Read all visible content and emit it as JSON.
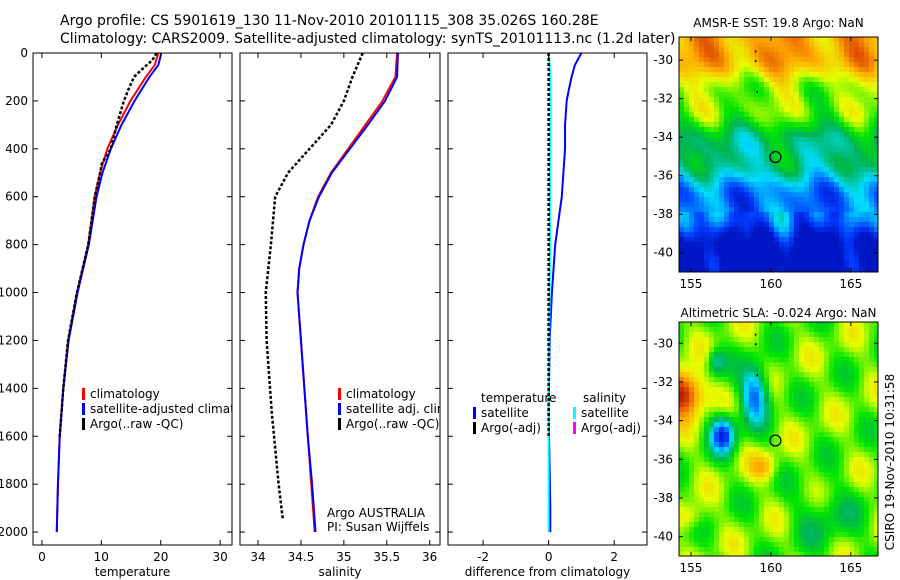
{
  "title_lines": [
    "Argo profile: CS 5901619_130 11-Nov-2010 20101115_308 35.026S 160.28E",
    "Climatology: CARS2009. Satellite-adjusted climatology: synTS_20101113.nc (1.2d later)"
  ],
  "footer_stamp": "CSIRO 19-Nov-2010 10:31:58",
  "colors": {
    "climatology": "#ff0000",
    "satellite": "#0000ff",
    "argo": "#000000",
    "salinity_satellite": "#00ffff",
    "salinity_argo": "#ff00ff"
  },
  "chart_data": [
    {
      "type": "line",
      "id": "temperature",
      "xlabel": "temperature",
      "ylabel": "depth",
      "xlim": [
        -1.5,
        32
      ],
      "ylim": [
        2054,
        0
      ],
      "xticks": [
        0,
        10,
        20,
        30
      ],
      "yticks": [
        0,
        200,
        400,
        600,
        800,
        1000,
        1200,
        1400,
        1600,
        1800,
        2000
      ],
      "legend": {
        "placement": "bottom-center",
        "entries": [
          "climatology",
          "satellite-adjusted climatology",
          "Argo(..raw -QC)"
        ]
      },
      "series": [
        {
          "name": "climatology",
          "color": "#ff0000",
          "depth": [
            0,
            50,
            100,
            200,
            300,
            400,
            500,
            600,
            800,
            1000,
            1200,
            1400,
            1600,
            1800,
            2000
          ],
          "values": [
            19.6,
            19,
            17.5,
            14.9,
            12.8,
            11,
            9.8,
            8.9,
            7.8,
            5.9,
            4.4,
            3.6,
            3.0,
            2.7,
            2.5
          ]
        },
        {
          "name": "satellite-adjusted climatology",
          "color": "#0000ff",
          "depth": [
            0,
            50,
            100,
            200,
            300,
            400,
            500,
            600,
            800,
            1000,
            1200,
            1400,
            1600,
            1800,
            2000
          ],
          "values": [
            20.1,
            19.6,
            18.1,
            15.6,
            13.4,
            11.6,
            10.2,
            9.2,
            7.9,
            6.0,
            4.5,
            3.6,
            3.0,
            2.7,
            2.5
          ]
        },
        {
          "name": "Argo(..raw -QC)",
          "color": "#000000",
          "dotted": true,
          "depth": [
            0,
            30,
            60,
            100,
            150,
            200,
            300,
            400,
            460,
            500,
            600,
            800,
            1000,
            1200,
            1400,
            1600
          ],
          "values": [
            19.3,
            18.6,
            17.2,
            15.5,
            14.6,
            13.8,
            12.6,
            11.6,
            10.1,
            9.8,
            8.9,
            7.8,
            5.9,
            4.4,
            3.6,
            3.0
          ]
        }
      ]
    },
    {
      "type": "line",
      "id": "salinity",
      "xlabel": "salinity",
      "xlim": [
        33.79,
        36.12
      ],
      "ylim": [
        2054,
        0
      ],
      "xticks": [
        34,
        34.5,
        35,
        35.5,
        36
      ],
      "xticklabels": [
        "34",
        "34.5",
        "35",
        "35.5",
        "36"
      ],
      "yticks": [
        0,
        200,
        400,
        600,
        800,
        1000,
        1200,
        1400,
        1600,
        1800,
        2000
      ],
      "legend": {
        "placement": "bottom-right",
        "entries": [
          "climatology",
          "satellite adj. clim.",
          "Argo(..raw -QC)"
        ]
      },
      "annotation": [
        "Argo AUSTRALIA",
        "PI: Susan Wijffels"
      ],
      "series": [
        {
          "name": "climatology",
          "color": "#ff0000",
          "depth": [
            0,
            100,
            200,
            300,
            400,
            500,
            600,
            700,
            800,
            900,
            1000,
            1200,
            1400,
            1600,
            1800,
            2000
          ],
          "values": [
            35.62,
            35.6,
            35.45,
            35.25,
            35.05,
            34.85,
            34.7,
            34.6,
            34.53,
            34.48,
            34.46,
            34.5,
            34.54,
            34.58,
            34.62,
            34.66
          ]
        },
        {
          "name": "satellite adj. clim.",
          "color": "#0000ff",
          "depth": [
            0,
            100,
            200,
            300,
            400,
            500,
            600,
            700,
            800,
            900,
            1000,
            1200,
            1400,
            1600,
            1800,
            2000
          ],
          "values": [
            35.63,
            35.62,
            35.48,
            35.28,
            35.07,
            34.86,
            34.71,
            34.6,
            34.53,
            34.48,
            34.46,
            34.5,
            34.54,
            34.58,
            34.63,
            34.67
          ]
        },
        {
          "name": "Argo(..raw -QC)",
          "color": "#000000",
          "dotted": true,
          "depth": [
            0,
            100,
            200,
            300,
            400,
            500,
            600,
            800,
            1000,
            1200,
            1500,
            1800,
            1950
          ],
          "values": [
            35.22,
            35.1,
            35.0,
            34.85,
            34.6,
            34.35,
            34.2,
            34.15,
            34.09,
            34.1,
            34.16,
            34.24,
            34.29
          ]
        }
      ]
    },
    {
      "type": "line",
      "id": "difference",
      "xlabel": "difference from climatology",
      "xlim": [
        -3.07,
        3.0
      ],
      "ylim": [
        2054,
        0
      ],
      "xticks": [
        -2,
        0,
        2
      ],
      "yticks": [
        0,
        200,
        400,
        600,
        800,
        1000,
        1200,
        1400,
        1600,
        1800,
        2000
      ],
      "legend": {
        "placement": "bottom",
        "headers": [
          "temperature",
          "salinity"
        ],
        "entries": [
          "satellite",
          "Argo(-adj)",
          "satellite",
          "Argo(-adj)"
        ]
      },
      "series": [
        {
          "name": "temperature satellite",
          "color": "#0000ff",
          "depth": [
            0,
            50,
            100,
            150,
            200,
            300,
            400,
            500,
            600,
            800,
            1000,
            1200,
            1500,
            1900,
            2000
          ],
          "values": [
            1.0,
            0.8,
            0.7,
            0.62,
            0.55,
            0.5,
            0.5,
            0.45,
            0.4,
            0.2,
            0.1,
            0.03,
            0.0,
            0.05,
            0.05
          ]
        },
        {
          "name": "salinity satellite",
          "color": "#00ffff",
          "depth": [
            0,
            50,
            100,
            200,
            400,
            600,
            800,
            1000,
            1400,
            2000
          ],
          "values": [
            0.0,
            0.03,
            0.05,
            0.06,
            0.05,
            0.04,
            0.04,
            0.03,
            0.0,
            0.0
          ]
        },
        {
          "name": "Argo(-adj)",
          "color": "#000000",
          "dotted": true,
          "depth": [
            0,
            400,
            800,
            1200,
            1600
          ],
          "values": [
            0,
            0,
            0,
            0,
            0
          ]
        }
      ]
    },
    {
      "type": "heatmap",
      "id": "sst-map",
      "title": "AMSR-E SST: 19.8 Argo: NaN",
      "xlim": [
        154.25,
        166.7
      ],
      "ylim": [
        -41.0,
        -28.8
      ],
      "xticks": [
        155,
        160,
        165
      ],
      "yticks": [
        -30,
        -32,
        -34,
        -36,
        -38,
        -40
      ],
      "argo_position": {
        "lon": 160.28,
        "lat": -35.03
      }
    },
    {
      "type": "heatmap",
      "id": "sla-map",
      "title": "Altimetric SLA: -0.024 Argo: NaN",
      "xlim": [
        154.25,
        166.7
      ],
      "ylim": [
        -41.0,
        -28.9
      ],
      "xticks": [
        155,
        160,
        165
      ],
      "yticks": [
        -30,
        -32,
        -34,
        -36,
        -38,
        -40
      ],
      "argo_position": {
        "lon": 160.28,
        "lat": -35.03
      }
    }
  ]
}
